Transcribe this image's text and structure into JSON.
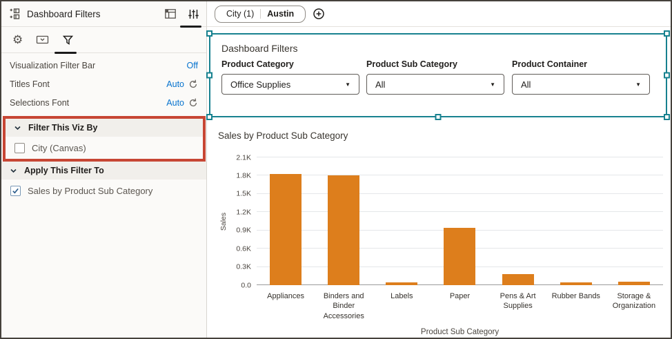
{
  "sidebar": {
    "title": "Dashboard Filters",
    "settings": [
      {
        "label": "Visualization Filter Bar",
        "value": "Off"
      },
      {
        "label": "Titles Font",
        "value": "Auto"
      },
      {
        "label": "Selections Font",
        "value": "Auto"
      }
    ],
    "filter_this_viz_by": {
      "title": "Filter This Viz By",
      "items": [
        {
          "label": "City (Canvas)",
          "checked": false
        }
      ]
    },
    "apply_this_filter_to": {
      "title": "Apply This Filter To",
      "items": [
        {
          "label": "Sales by Product Sub Category",
          "checked": true
        }
      ]
    }
  },
  "topbar": {
    "filter_chip": {
      "label": "City (1)",
      "value": "Austin"
    }
  },
  "canvas": {
    "filter_panel": {
      "title": "Dashboard Filters",
      "filters": [
        {
          "label": "Product Category",
          "value": "Office Supplies"
        },
        {
          "label": "Product Sub Category",
          "value": "All"
        },
        {
          "label": "Product Container",
          "value": "All"
        }
      ]
    }
  },
  "chart_data": {
    "type": "bar",
    "title": "Sales by Product Sub Category",
    "categories": [
      "Appliances",
      "Binders and Binder Accessories",
      "Labels",
      "Paper",
      "Pens & Art Supplies",
      "Rubber Bands",
      "Storage & Organization"
    ],
    "values": [
      1.83,
      1.8,
      0.05,
      0.94,
      0.18,
      0.04,
      0.06
    ],
    "unit": "K",
    "xlabel": "Product Sub Category",
    "ylabel": "Sales",
    "ylim": [
      0,
      2.1
    ],
    "yticks": [
      2.1,
      1.8,
      1.5,
      1.2,
      0.9,
      0.6,
      0.3,
      0.0
    ],
    "grid": true,
    "bar_color": "#DD7E1C"
  },
  "icons": {
    "gear": "⚙",
    "caret_down": "▼"
  },
  "colors": {
    "accent_blue": "#0572CE",
    "selection_teal": "#17818F",
    "highlight_red": "#C74634",
    "bar_orange": "#DD7E1C"
  }
}
